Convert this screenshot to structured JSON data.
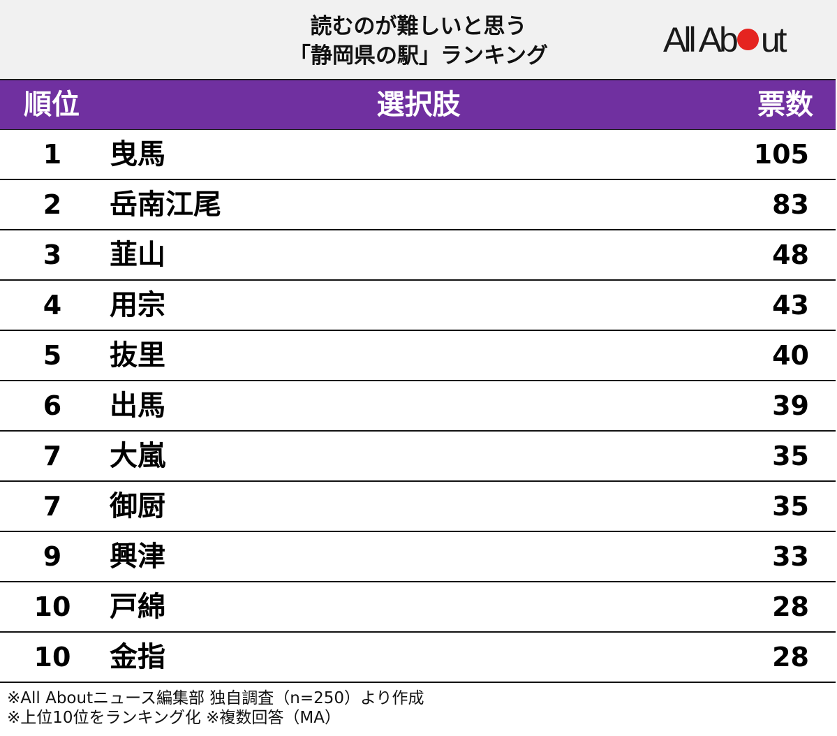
{
  "title": {
    "line1": "読むのが難しいと思う",
    "line2": "「静岡県の駅」ランキング"
  },
  "logo": {
    "part1": "All Ab",
    "part2": "ut",
    "dot_color": "#e52420"
  },
  "header": {
    "rank": "順位",
    "choice": "選択肢",
    "votes": "票数",
    "bg_color": "#7030a0"
  },
  "rows": [
    {
      "rank": "1",
      "name": "曳馬",
      "votes": "105"
    },
    {
      "rank": "2",
      "name": "岳南江尾",
      "votes": "83"
    },
    {
      "rank": "3",
      "name": "韮山",
      "votes": "48"
    },
    {
      "rank": "4",
      "name": "用宗",
      "votes": "43"
    },
    {
      "rank": "5",
      "name": "抜里",
      "votes": "40"
    },
    {
      "rank": "6",
      "name": "出馬",
      "votes": "39"
    },
    {
      "rank": "7",
      "name": "大嵐",
      "votes": "35"
    },
    {
      "rank": "7",
      "name": "御厨",
      "votes": "35"
    },
    {
      "rank": "9",
      "name": "興津",
      "votes": "33"
    },
    {
      "rank": "10",
      "name": "戸綿",
      "votes": "28"
    },
    {
      "rank": "10",
      "name": "金指",
      "votes": "28"
    }
  ],
  "notes": {
    "line1": "※All Aboutニュース編集部 独自調査（n=250）より作成",
    "line2": "※上位10位をランキング化 ※複数回答（MA）"
  },
  "chart_data": {
    "type": "table",
    "title": "読むのが難しいと思う「静岡県の駅」ランキング",
    "columns": [
      "順位",
      "選択肢",
      "票数"
    ],
    "categories": [
      "曳馬",
      "岳南江尾",
      "韮山",
      "用宗",
      "抜里",
      "出馬",
      "大嵐",
      "御厨",
      "興津",
      "戸綿",
      "金指"
    ],
    "ranks": [
      1,
      2,
      3,
      4,
      5,
      6,
      7,
      7,
      9,
      10,
      10
    ],
    "values": [
      105,
      83,
      48,
      43,
      40,
      39,
      35,
      35,
      33,
      28,
      28
    ],
    "notes": [
      "※All Aboutニュース編集部 独自調査（n=250）より作成",
      "※上位10位をランキング化 ※複数回答（MA）"
    ]
  }
}
